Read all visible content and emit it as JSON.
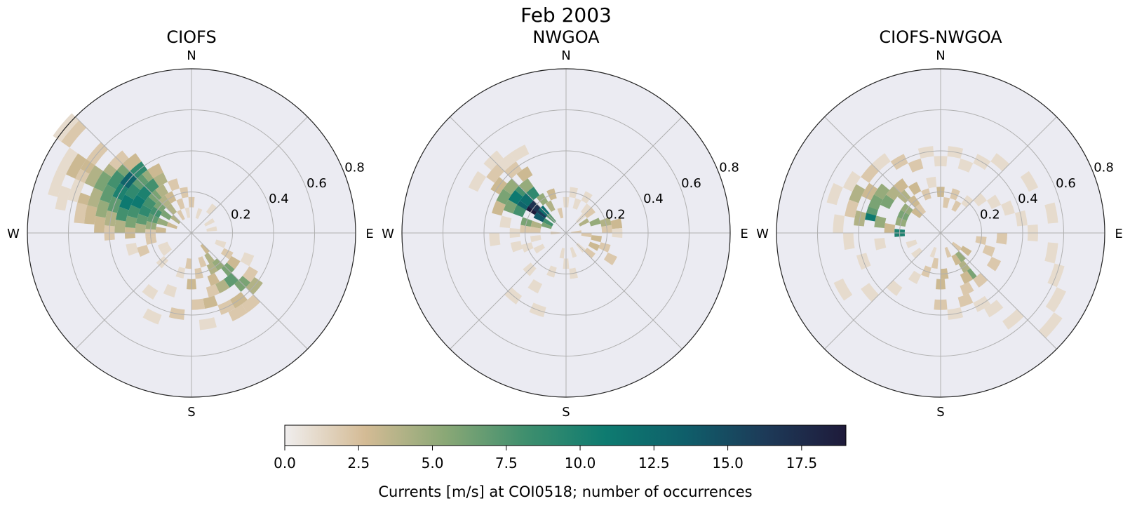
{
  "title": "Feb 2003",
  "colors": {
    "panel_bg": "#ebebf2",
    "grid": "#b0b0b0",
    "cmap": [
      "#f0eeee",
      "#d4bb95",
      "#8aa876",
      "#3f8f6e",
      "#0e7b70",
      "#0f5e6a",
      "#1d3a58",
      "#1e1a3a"
    ]
  },
  "chart_data": [
    {
      "type": "polar-heatmap",
      "title": "CIOFS",
      "compass": [
        "N",
        "E",
        "S",
        "W"
      ],
      "rticks": [
        "0.2",
        "0.4",
        "0.6",
        "0.8"
      ],
      "rmax": 0.8,
      "direction_bin_deg": 10,
      "speed_bin": 0.05,
      "cells": [
        [
          310,
          0.8,
          1
        ],
        [
          310,
          0.75,
          2
        ],
        [
          300,
          0.7,
          1
        ],
        [
          290,
          0.7,
          1
        ],
        [
          285,
          0.65,
          1
        ],
        [
          300,
          0.65,
          3
        ],
        [
          305,
          0.6,
          3
        ],
        [
          310,
          0.6,
          2
        ],
        [
          300,
          0.55,
          4
        ],
        [
          295,
          0.6,
          2
        ],
        [
          290,
          0.6,
          1
        ],
        [
          285,
          0.55,
          3
        ],
        [
          280,
          0.55,
          2
        ],
        [
          280,
          0.5,
          3
        ],
        [
          290,
          0.5,
          4
        ],
        [
          300,
          0.5,
          6
        ],
        [
          310,
          0.5,
          4
        ],
        [
          315,
          0.5,
          2
        ],
        [
          275,
          0.45,
          3
        ],
        [
          285,
          0.45,
          5
        ],
        [
          295,
          0.45,
          7
        ],
        [
          305,
          0.45,
          8
        ],
        [
          315,
          0.45,
          6
        ],
        [
          320,
          0.45,
          3
        ],
        [
          270,
          0.4,
          2
        ],
        [
          280,
          0.4,
          4
        ],
        [
          290,
          0.4,
          7
        ],
        [
          300,
          0.4,
          10
        ],
        [
          310,
          0.4,
          13
        ],
        [
          320,
          0.4,
          9
        ],
        [
          275,
          0.35,
          4
        ],
        [
          285,
          0.35,
          8
        ],
        [
          295,
          0.35,
          11
        ],
        [
          305,
          0.35,
          9
        ],
        [
          315,
          0.35,
          7
        ],
        [
          325,
          0.35,
          5
        ],
        [
          330,
          0.35,
          3
        ],
        [
          270,
          0.3,
          3
        ],
        [
          280,
          0.3,
          6
        ],
        [
          290,
          0.3,
          8
        ],
        [
          300,
          0.3,
          11
        ],
        [
          310,
          0.3,
          10
        ],
        [
          320,
          0.3,
          8
        ],
        [
          330,
          0.3,
          4
        ],
        [
          275,
          0.25,
          4
        ],
        [
          285,
          0.25,
          7
        ],
        [
          295,
          0.25,
          9
        ],
        [
          305,
          0.25,
          8
        ],
        [
          315,
          0.25,
          6
        ],
        [
          325,
          0.25,
          4
        ],
        [
          340,
          0.25,
          2
        ],
        [
          270,
          0.2,
          2
        ],
        [
          280,
          0.2,
          5
        ],
        [
          290,
          0.2,
          7
        ],
        [
          300,
          0.2,
          8
        ],
        [
          310,
          0.2,
          6
        ],
        [
          320,
          0.2,
          4
        ],
        [
          330,
          0.2,
          3
        ],
        [
          350,
          0.2,
          2
        ],
        [
          275,
          0.15,
          3
        ],
        [
          290,
          0.15,
          5
        ],
        [
          305,
          0.15,
          6
        ],
        [
          320,
          0.15,
          4
        ],
        [
          340,
          0.15,
          2
        ],
        [
          0,
          0.15,
          2
        ],
        [
          290,
          0.1,
          3
        ],
        [
          310,
          0.1,
          4
        ],
        [
          330,
          0.1,
          2
        ],
        [
          350,
          0.1,
          1
        ],
        [
          20,
          0.1,
          1
        ],
        [
          40,
          0.15,
          1
        ],
        [
          60,
          0.1,
          1
        ],
        [
          80,
          0.1,
          1
        ],
        [
          260,
          0.2,
          2
        ],
        [
          255,
          0.3,
          1
        ],
        [
          250,
          0.25,
          2
        ],
        [
          245,
          0.15,
          1
        ],
        [
          140,
          0.1,
          3
        ],
        [
          145,
          0.15,
          4
        ],
        [
          140,
          0.2,
          5
        ],
        [
          135,
          0.25,
          6
        ],
        [
          140,
          0.3,
          7
        ],
        [
          135,
          0.35,
          6
        ],
        [
          130,
          0.4,
          4
        ],
        [
          145,
          0.4,
          3
        ],
        [
          150,
          0.3,
          4
        ],
        [
          155,
          0.25,
          3
        ],
        [
          150,
          0.2,
          4
        ],
        [
          160,
          0.15,
          2
        ],
        [
          160,
          0.3,
          2
        ],
        [
          165,
          0.35,
          3
        ],
        [
          155,
          0.4,
          2
        ],
        [
          150,
          0.45,
          2
        ],
        [
          140,
          0.45,
          2
        ],
        [
          125,
          0.35,
          2
        ],
        [
          125,
          0.25,
          3
        ],
        [
          120,
          0.2,
          2
        ],
        [
          115,
          0.3,
          1
        ],
        [
          110,
          0.15,
          1
        ],
        [
          170,
          0.2,
          2
        ],
        [
          180,
          0.25,
          3
        ],
        [
          175,
          0.35,
          2
        ],
        [
          185,
          0.15,
          2
        ],
        [
          195,
          0.2,
          1
        ],
        [
          200,
          0.3,
          1
        ],
        [
          205,
          0.45,
          1
        ],
        [
          215,
          0.35,
          1
        ],
        [
          225,
          0.2,
          1
        ],
        [
          235,
          0.15,
          1
        ],
        [
          190,
          0.4,
          2
        ],
        [
          170,
          0.45,
          1
        ]
      ]
    },
    {
      "type": "polar-heatmap",
      "title": "NWGOA",
      "compass": [
        "N",
        "E",
        "S",
        "W"
      ],
      "rticks": [
        "0.2",
        "0.4",
        "0.6",
        "0.8"
      ],
      "rmax": 0.8,
      "direction_bin_deg": 10,
      "speed_bin": 0.05,
      "cells": [
        [
          310,
          0.15,
          16
        ],
        [
          305,
          0.2,
          19
        ],
        [
          310,
          0.2,
          17
        ],
        [
          300,
          0.15,
          14
        ],
        [
          315,
          0.15,
          12
        ],
        [
          300,
          0.25,
          13
        ],
        [
          310,
          0.25,
          12
        ],
        [
          320,
          0.25,
          9
        ],
        [
          295,
          0.25,
          8
        ],
        [
          305,
          0.3,
          11
        ],
        [
          315,
          0.3,
          8
        ],
        [
          295,
          0.3,
          6
        ],
        [
          320,
          0.3,
          5
        ],
        [
          300,
          0.35,
          6
        ],
        [
          310,
          0.35,
          5
        ],
        [
          325,
          0.35,
          3
        ],
        [
          290,
          0.35,
          3
        ],
        [
          305,
          0.4,
          3
        ],
        [
          320,
          0.4,
          2
        ],
        [
          285,
          0.2,
          6
        ],
        [
          285,
          0.15,
          4
        ],
        [
          290,
          0.1,
          6
        ],
        [
          300,
          0.1,
          8
        ],
        [
          315,
          0.1,
          7
        ],
        [
          325,
          0.2,
          5
        ],
        [
          330,
          0.15,
          4
        ],
        [
          340,
          0.2,
          3
        ],
        [
          345,
          0.1,
          2
        ],
        [
          275,
          0.2,
          2
        ],
        [
          275,
          0.15,
          2
        ],
        [
          280,
          0.3,
          1
        ],
        [
          270,
          0.25,
          1
        ],
        [
          265,
          0.35,
          1
        ],
        [
          310,
          0.45,
          2
        ],
        [
          315,
          0.5,
          1
        ],
        [
          300,
          0.5,
          1
        ],
        [
          320,
          0.45,
          1
        ],
        [
          330,
          0.45,
          1
        ],
        [
          60,
          0.1,
          4
        ],
        [
          70,
          0.15,
          5
        ],
        [
          75,
          0.2,
          4
        ],
        [
          80,
          0.25,
          3
        ],
        [
          85,
          0.2,
          2
        ],
        [
          90,
          0.25,
          1
        ],
        [
          95,
          0.1,
          2
        ],
        [
          100,
          0.15,
          3
        ],
        [
          110,
          0.2,
          2
        ],
        [
          115,
          0.15,
          3
        ],
        [
          120,
          0.25,
          2
        ],
        [
          130,
          0.15,
          2
        ],
        [
          135,
          0.1,
          1
        ],
        [
          50,
          0.15,
          2
        ],
        [
          45,
          0.1,
          1
        ],
        [
          40,
          0.15,
          1
        ],
        [
          30,
          0.2,
          1
        ],
        [
          20,
          0.15,
          1
        ],
        [
          10,
          0.2,
          1
        ],
        [
          0,
          0.15,
          1
        ],
        [
          160,
          0.1,
          1
        ],
        [
          170,
          0.2,
          1
        ],
        [
          180,
          0.15,
          1
        ],
        [
          190,
          0.1,
          1
        ],
        [
          200,
          0.2,
          1
        ],
        [
          210,
          0.3,
          1
        ],
        [
          220,
          0.4,
          1
        ],
        [
          200,
          0.4,
          1
        ],
        [
          225,
          0.25,
          1
        ],
        [
          240,
          0.15,
          1
        ],
        [
          250,
          0.2,
          1
        ],
        [
          260,
          0.15,
          1
        ],
        [
          255,
          0.25,
          1
        ],
        [
          270,
          0.05,
          2
        ],
        [
          85,
          0.05,
          2
        ]
      ]
    },
    {
      "type": "polar-heatmap",
      "title": "CIOFS-NWGOA",
      "compass": [
        "N",
        "E",
        "S",
        "W"
      ],
      "rticks": [
        "0.2",
        "0.4",
        "0.6",
        "0.8"
      ],
      "rmax": 0.8,
      "direction_bin_deg": 10,
      "speed_bin": 0.05,
      "cells": [
        [
          285,
          0.35,
          11
        ],
        [
          290,
          0.35,
          7
        ],
        [
          295,
          0.35,
          6
        ],
        [
          300,
          0.3,
          6
        ],
        [
          305,
          0.35,
          5
        ],
        [
          310,
          0.3,
          4
        ],
        [
          315,
          0.25,
          4
        ],
        [
          320,
          0.3,
          3
        ],
        [
          280,
          0.3,
          5
        ],
        [
          275,
          0.25,
          3
        ],
        [
          270,
          0.2,
          10
        ],
        [
          285,
          0.2,
          5
        ],
        [
          295,
          0.2,
          6
        ],
        [
          305,
          0.2,
          5
        ],
        [
          320,
          0.2,
          3
        ],
        [
          330,
          0.25,
          3
        ],
        [
          340,
          0.2,
          2
        ],
        [
          350,
          0.25,
          1
        ],
        [
          0,
          0.2,
          3
        ],
        [
          10,
          0.15,
          2
        ],
        [
          20,
          0.2,
          2
        ],
        [
          30,
          0.15,
          2
        ],
        [
          40,
          0.2,
          1
        ],
        [
          50,
          0.25,
          1
        ],
        [
          60,
          0.3,
          1
        ],
        [
          70,
          0.35,
          1
        ],
        [
          80,
          0.4,
          1
        ],
        [
          90,
          0.45,
          1
        ],
        [
          100,
          0.55,
          1
        ],
        [
          110,
          0.6,
          1
        ],
        [
          120,
          0.65,
          1
        ],
        [
          130,
          0.7,
          1
        ],
        [
          140,
          0.55,
          1
        ],
        [
          145,
          0.45,
          1
        ],
        [
          150,
          0.4,
          1
        ],
        [
          140,
          0.3,
          2
        ],
        [
          145,
          0.2,
          4
        ],
        [
          150,
          0.15,
          3
        ],
        [
          140,
          0.15,
          5
        ],
        [
          145,
          0.25,
          6
        ],
        [
          150,
          0.25,
          3
        ],
        [
          155,
          0.3,
          2
        ],
        [
          160,
          0.35,
          2
        ],
        [
          170,
          0.4,
          1
        ],
        [
          180,
          0.35,
          2
        ],
        [
          180,
          0.25,
          3
        ],
        [
          175,
          0.2,
          3
        ],
        [
          190,
          0.15,
          2
        ],
        [
          200,
          0.2,
          2
        ],
        [
          210,
          0.25,
          1
        ],
        [
          220,
          0.35,
          1
        ],
        [
          230,
          0.45,
          1
        ],
        [
          240,
          0.55,
          1
        ],
        [
          250,
          0.4,
          1
        ],
        [
          260,
          0.3,
          1
        ],
        [
          265,
          0.45,
          1
        ],
        [
          275,
          0.5,
          1
        ],
        [
          290,
          0.55,
          1
        ],
        [
          300,
          0.5,
          1
        ],
        [
          310,
          0.45,
          2
        ],
        [
          320,
          0.45,
          1
        ],
        [
          330,
          0.4,
          2
        ],
        [
          340,
          0.35,
          2
        ],
        [
          350,
          0.4,
          1
        ],
        [
          0,
          0.35,
          1
        ],
        [
          10,
          0.4,
          1
        ],
        [
          20,
          0.35,
          1
        ],
        [
          30,
          0.4,
          1
        ],
        [
          40,
          0.45,
          1
        ],
        [
          60,
          0.5,
          1
        ],
        [
          80,
          0.55,
          1
        ],
        [
          95,
          0.3,
          2
        ],
        [
          100,
          0.2,
          2
        ],
        [
          110,
          0.25,
          2
        ],
        [
          120,
          0.3,
          2
        ],
        [
          125,
          0.15,
          3
        ],
        [
          130,
          0.1,
          2
        ],
        [
          160,
          0.1,
          2
        ],
        [
          200,
          0.1,
          1
        ],
        [
          230,
          0.15,
          1
        ],
        [
          250,
          0.15,
          1
        ],
        [
          280,
          0.4,
          4
        ],
        [
          295,
          0.45,
          4
        ],
        [
          300,
          0.4,
          3
        ],
        [
          285,
          0.45,
          2
        ],
        [
          310,
          0.15,
          3
        ],
        [
          320,
          0.15,
          2
        ]
      ]
    }
  ],
  "colorbar": {
    "ticks": [
      "0.0",
      "2.5",
      "5.0",
      "7.5",
      "10.0",
      "12.5",
      "15.0",
      "17.5"
    ],
    "min": 0,
    "max": 19,
    "label": "Currents [m/s] at COI0518; number of occurrences"
  }
}
